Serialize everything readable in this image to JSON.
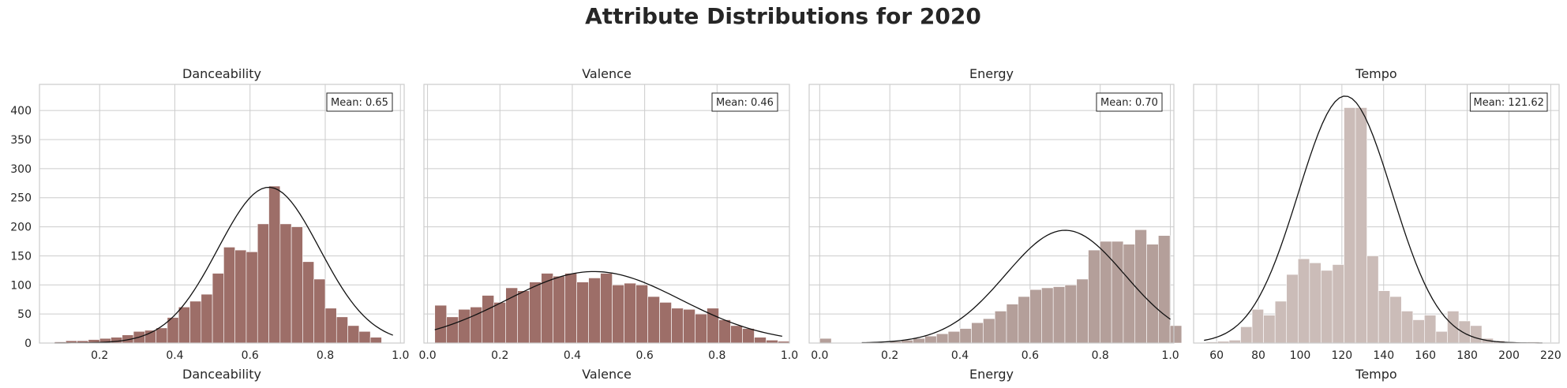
{
  "figure_title": "Attribute Distributions for 2020",
  "chart_data": [
    {
      "type": "bar",
      "title": "Danceability",
      "xlabel": "Danceability",
      "ylabel": "",
      "xlim": [
        0.04,
        1.01
      ],
      "ylim": [
        0,
        445
      ],
      "xticks": [
        "0.2",
        "0.4",
        "0.6",
        "0.8",
        "1.0"
      ],
      "xtick_values": [
        0.2,
        0.4,
        0.6,
        0.8,
        1.0
      ],
      "yticks": [
        "0",
        "50",
        "100",
        "150",
        "200",
        "250",
        "300",
        "350",
        "400"
      ],
      "ytick_values": [
        0,
        50,
        100,
        150,
        200,
        250,
        300,
        350,
        400
      ],
      "show_yticks": true,
      "bar_color": "#9d6e68",
      "bins_start": 0.08,
      "bins_width": 0.03,
      "values": [
        2,
        4,
        4,
        6,
        8,
        10,
        14,
        20,
        22,
        26,
        44,
        62,
        72,
        84,
        120,
        165,
        160,
        157,
        205,
        270,
        205,
        200,
        140,
        110,
        60,
        45,
        30,
        20,
        10
      ],
      "curve": {
        "mean": 0.65,
        "sd": 0.135,
        "peak": 268
      },
      "curve_range": [
        0.08,
        0.98
      ],
      "mean_label": "Mean: 0.65"
    },
    {
      "type": "bar",
      "title": "Valence",
      "xlabel": "Valence",
      "ylabel": "",
      "xlim": [
        -0.01,
        1.0
      ],
      "ylim": [
        0,
        445
      ],
      "xticks": [
        "0.0",
        "0.2",
        "0.4",
        "0.6",
        "0.8",
        "1.0"
      ],
      "xtick_values": [
        0.0,
        0.2,
        0.4,
        0.6,
        0.8,
        1.0
      ],
      "yticks": [],
      "ytick_values": [
        0,
        50,
        100,
        150,
        200,
        250,
        300,
        350,
        400
      ],
      "show_yticks": false,
      "bar_color": "#9d6e68",
      "bins_start": 0.02,
      "bins_width": 0.0327,
      "values": [
        65,
        45,
        58,
        62,
        82,
        70,
        95,
        90,
        105,
        120,
        115,
        120,
        105,
        112,
        120,
        100,
        103,
        100,
        80,
        70,
        60,
        58,
        50,
        60,
        40,
        30,
        25,
        10,
        5,
        3
      ],
      "curve": {
        "mean": 0.46,
        "sd": 0.24,
        "peak": 123
      },
      "curve_range": [
        0.02,
        0.98
      ],
      "mean_label": "Mean: 0.46"
    },
    {
      "type": "bar",
      "title": "Energy",
      "xlabel": "Energy",
      "ylabel": "",
      "xlim": [
        -0.03,
        1.01
      ],
      "ylim": [
        0,
        445
      ],
      "xticks": [
        "0.0",
        "0.2",
        "0.4",
        "0.6",
        "0.8",
        "1.0"
      ],
      "xtick_values": [
        0.0,
        0.2,
        0.4,
        0.6,
        0.8,
        1.0
      ],
      "yticks": [],
      "ytick_values": [
        0,
        50,
        100,
        150,
        200,
        250,
        300,
        350,
        400
      ],
      "show_yticks": false,
      "bar_color": "#b49f9a",
      "bins_start": 0.0,
      "bins_width": 0.0333,
      "values": [
        8,
        1,
        1,
        1,
        2,
        1,
        3,
        5,
        8,
        12,
        16,
        20,
        25,
        35,
        42,
        55,
        67,
        80,
        92,
        95,
        97,
        100,
        110,
        160,
        175,
        175,
        170,
        195,
        170,
        185,
        30
      ],
      "curve": {
        "mean": 0.7,
        "sd": 0.17,
        "peak": 194
      },
      "curve_range": [
        0.12,
        1.0
      ],
      "mean_label": "Mean: 0.70"
    },
    {
      "type": "bar",
      "title": "Tempo",
      "xlabel": "Tempo",
      "ylabel": "",
      "xlim": [
        49,
        224
      ],
      "ylim": [
        0,
        445
      ],
      "xticks": [
        "60",
        "80",
        "100",
        "120",
        "140",
        "160",
        "180",
        "200",
        "220"
      ],
      "xtick_values": [
        60,
        80,
        100,
        120,
        140,
        160,
        180,
        200,
        220
      ],
      "yticks": [],
      "ytick_values": [
        0,
        50,
        100,
        150,
        200,
        250,
        300,
        350,
        400
      ],
      "show_yticks": false,
      "bar_color": "#cbbcb8",
      "bins_start": 55,
      "bins_width": 5.5,
      "values": [
        2,
        3,
        5,
        28,
        58,
        48,
        72,
        118,
        145,
        138,
        125,
        135,
        405,
        405,
        150,
        90,
        80,
        55,
        40,
        48,
        20,
        55,
        38,
        30,
        8,
        4,
        2,
        1,
        2,
        1
      ],
      "curve": {
        "mean": 121.6,
        "sd": 22.5,
        "peak": 425
      },
      "curve_range": [
        54,
        216
      ],
      "mean_label": "Mean: 121.62"
    }
  ]
}
